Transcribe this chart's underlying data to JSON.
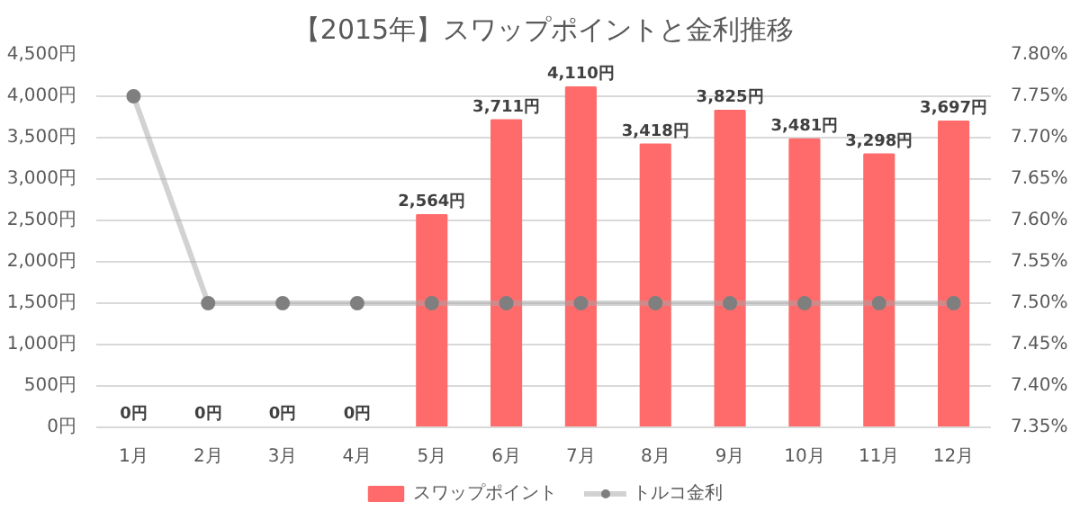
{
  "chart_data": {
    "type": "bar",
    "title": "【2015年】スワップポイントと金利推移",
    "categories": [
      "1月",
      "2月",
      "3月",
      "4月",
      "5月",
      "6月",
      "7月",
      "8月",
      "9月",
      "10月",
      "11月",
      "12月"
    ],
    "series": [
      {
        "name": "スワップポイント",
        "color": "#ff6b6b",
        "values": [
          0,
          0,
          0,
          0,
          2564,
          3711,
          4110,
          3418,
          3825,
          3481,
          3298,
          3697
        ],
        "value_labels": [
          "0円",
          "0円",
          "0円",
          "0円",
          "2,564円",
          "3,711円",
          "4,110円",
          "3,418円",
          "3,825円",
          "3,481円",
          "3,298円",
          "3,697円"
        ]
      },
      {
        "name": "トルコ金利",
        "type": "line",
        "axis": "y2",
        "color": "#a5a5a5",
        "marker": "circle",
        "values": [
          7.75,
          7.5,
          7.5,
          7.5,
          7.5,
          7.5,
          7.5,
          7.5,
          7.5,
          7.5,
          7.5,
          7.5
        ]
      }
    ],
    "ylim": [
      0,
      4500
    ],
    "yticks": [
      {
        "value": 0,
        "label": "0円"
      },
      {
        "value": 500,
        "label": "500円"
      },
      {
        "value": 1000,
        "label": "1,000円"
      },
      {
        "value": 1500,
        "label": "1,500円"
      },
      {
        "value": 2000,
        "label": "2,000円"
      },
      {
        "value": 2500,
        "label": "2,500円"
      },
      {
        "value": 3000,
        "label": "3,000円"
      },
      {
        "value": 3500,
        "label": "3,500円"
      },
      {
        "value": 4000,
        "label": "4,000円"
      },
      {
        "value": 4500,
        "label": "4,500円"
      }
    ],
    "y2lim": [
      7.35,
      7.8
    ],
    "y2ticks": [
      {
        "value": 7.35,
        "label": "7.35%"
      },
      {
        "value": 7.4,
        "label": "7.40%"
      },
      {
        "value": 7.45,
        "label": "7.45%"
      },
      {
        "value": 7.5,
        "label": "7.50%"
      },
      {
        "value": 7.55,
        "label": "7.55%"
      },
      {
        "value": 7.6,
        "label": "7.60%"
      },
      {
        "value": 7.65,
        "label": "7.65%"
      },
      {
        "value": 7.7,
        "label": "7.70%"
      },
      {
        "value": 7.75,
        "label": "7.75%"
      },
      {
        "value": 7.8,
        "label": "7.80%"
      }
    ],
    "grid": "y",
    "legend": "bottom"
  }
}
